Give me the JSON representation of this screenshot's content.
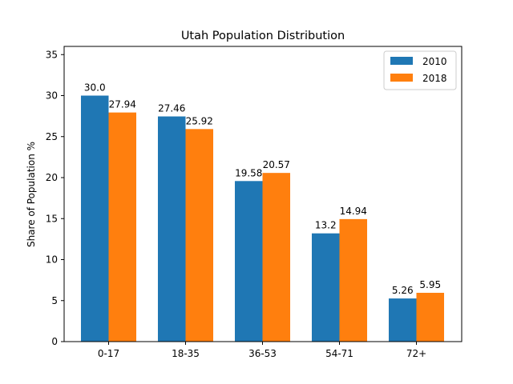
{
  "chart_data": {
    "type": "bar",
    "title": "Utah Population Distribution",
    "xlabel": "",
    "ylabel": "Share of Population %",
    "categories": [
      "0-17",
      "18-35",
      "36-53",
      "54-71",
      "72+"
    ],
    "series": [
      {
        "name": "2010",
        "values": [
          30.0,
          27.46,
          19.58,
          13.2,
          5.26
        ],
        "labels": [
          "30.0",
          "27.46",
          "19.58",
          "13.2",
          "5.26"
        ],
        "color": "#1f77b4"
      },
      {
        "name": "2018",
        "values": [
          27.94,
          25.92,
          20.57,
          14.94,
          5.95
        ],
        "labels": [
          "27.94",
          "25.92",
          "20.57",
          "14.94",
          "5.95"
        ],
        "color": "#ff7f0e"
      }
    ],
    "ylim": [
      0,
      36
    ],
    "yticks": [
      0,
      5,
      10,
      15,
      20,
      25,
      30,
      35
    ],
    "grid": false,
    "legend_position": "top-right"
  }
}
